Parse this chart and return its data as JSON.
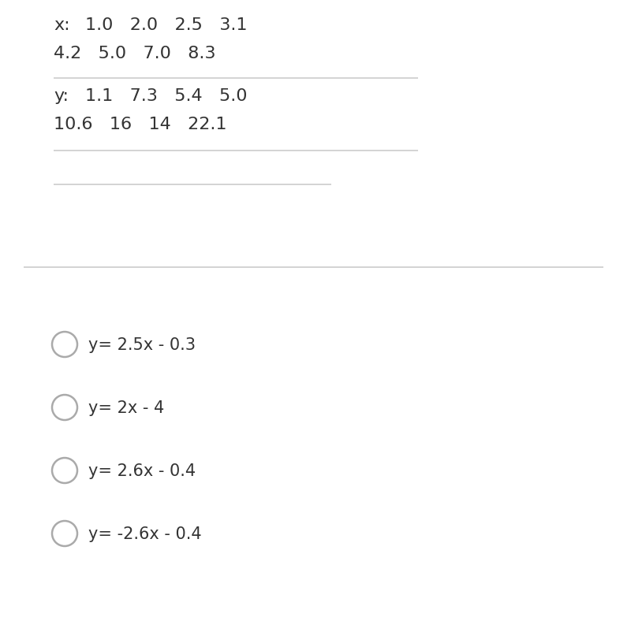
{
  "x_label": "x:",
  "x_row1": "1.0   2.0   2.5   3.1",
  "x_row2": "4.2   5.0   7.0   8.3",
  "y_label": "y:",
  "y_row1": "1.1   7.3   5.4   5.0",
  "y_row2": "10.6   16   14   22.1",
  "separator_color": "#cccccc",
  "background_color": "#ffffff",
  "text_color": "#333333",
  "choices": [
    "y= 2.5x - 0.3",
    "y= 2x - 4",
    "y= 2.6x - 0.4",
    "y= -2.6x - 0.4"
  ],
  "font_size_table": 16,
  "font_size_choices": 15,
  "circle_color": "#aaaaaa",
  "circle_linewidth": 1.8
}
